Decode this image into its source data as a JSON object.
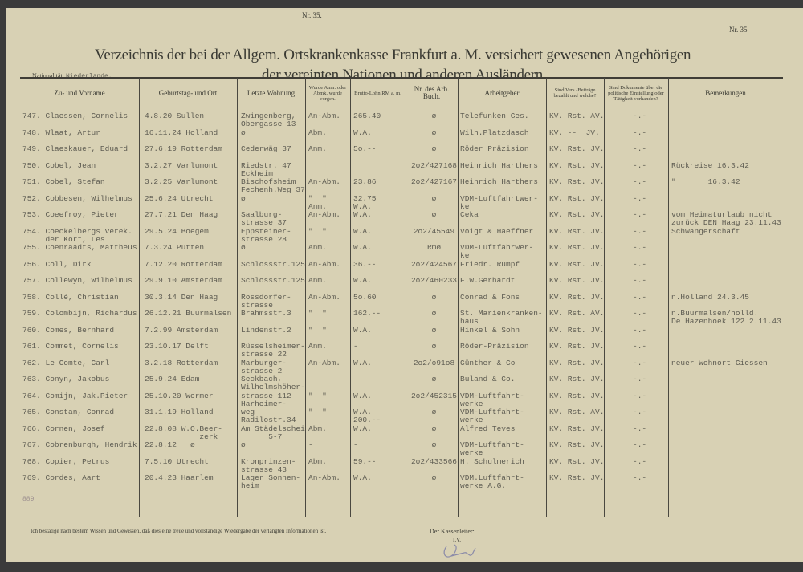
{
  "header": {
    "nr_left": "Nr. 35.",
    "nr_right": "Nr. 35",
    "title_line1": "Verzeichnis der bei der Allgem. Ortskrankenkasse  Frankfurt a. M. versichert gewesenen Angehörigen",
    "title_line2": "der vereinten Nationen  und anderen Ausländern",
    "nationality_label": "Nationalität:",
    "nationality_value": "Niederlande."
  },
  "columns": [
    "Zu- und Vorname",
    "Geburtstag- und Ort",
    "Letzte Wohnung",
    "Wurde Anm. oder Abmk. wurde vorgen.",
    "Brutto-Lohn RM a. m.",
    "Nr. des Arb. Buch.",
    "Arbeitgeber",
    "Sind Vers.-Beiträge bezahlt und welche?",
    "Sind Dokumente über die politische Einstellung oder Tätigkeit vorhanden?",
    "Bemerkungen"
  ],
  "rows": [
    {
      "name": "747. Claessen, Cornelis",
      "birth": "4.8.20 Sullen",
      "address": "Zwingenberg,\nObergasse 13",
      "reg": "An-Abm.",
      "wage": "265.40",
      "book": "ø",
      "employer": "Telefunken Ges.",
      "contrib": "KV. Rst. AV.",
      "docs": "-.-",
      "remarks": ""
    },
    {
      "name": "748. Wlaat, Artur",
      "birth": "16.11.24 Holland",
      "address": "ø",
      "reg": "Abm.",
      "wage": "W.A.",
      "book": "ø",
      "employer": "Wilh.Platzdasch",
      "contrib": "KV. --  JV.",
      "docs": "-.-",
      "remarks": ""
    },
    {
      "name": "749. Claeskauer, Eduard",
      "birth": "27.6.19 Rotterdam",
      "address": "Cederwäg 37",
      "reg": "Anm.",
      "wage": "5o.--",
      "book": "ø",
      "employer": "Röder Präzision",
      "contrib": "KV. Rst. JV.",
      "docs": "-.-",
      "remarks": ""
    },
    {
      "name": "750. Cobel, Jean",
      "birth": "3.2.27 Varlumont",
      "address": "Riedstr. 47\nEckheim",
      "reg": "",
      "wage": "",
      "book": "2o2/427168",
      "employer": "Heinrich Harthers",
      "contrib": "KV. Rst. JV.",
      "docs": "-.-",
      "remarks": "Rückreise 16.3.42"
    },
    {
      "name": "751. Cobel, Stefan",
      "birth": "3.2.25 Varlumont",
      "address": "Bischofsheim\nFechenh.Weg 37",
      "reg": "An-Abm.",
      "wage": "23.86",
      "book": "2o2/427167",
      "employer": "Heinrich Harthers",
      "contrib": "KV. Rst. JV.",
      "docs": "-.-",
      "remarks": "\"       16.3.42"
    },
    {
      "name": "752. Cobbesen, Wilhelmus",
      "birth": "25.6.24 Utrecht",
      "address": "ø",
      "reg": "\"  \"\nAnm.",
      "wage": "32.75\nW.A.",
      "book": "ø",
      "employer": "VDM-Luftfahrtwer-\nke",
      "contrib": "KV. Rst. JV.",
      "docs": "-.-",
      "remarks": ""
    },
    {
      "name": "753. Coeefroy, Pieter",
      "birth": "27.7.21 Den Haag",
      "address": "Saalburg-\nstrasse 37",
      "reg": "An-Abm.",
      "wage": "W.A.",
      "book": "ø",
      "employer": "Ceka",
      "contrib": "KV. Rst. JV.",
      "docs": "-.-",
      "remarks": "vom Heimaturlaub nicht\nzurück DEN Haag 23.11.43"
    },
    {
      "name": "754. Coeckelbergs verek.\n     der Kort, Les",
      "birth": "29.5.24 Boegem",
      "address": "Eppsteiner-\nstrasse 28",
      "reg": "\"  \"",
      "wage": "W.A.",
      "book": "2o2/45549",
      "employer": "Voigt & Haeffner",
      "contrib": "KV. Rst. JV.",
      "docs": "-.-",
      "remarks": "Schwangerschaft"
    },
    {
      "name": "755. Coenraadts, Mattheus",
      "birth": "7.3.24 Putten",
      "address": "ø",
      "reg": "Anm.",
      "wage": "W.A.",
      "book": "Rmø",
      "employer": "VDM-Luftfahrwer-\nke",
      "contrib": "KV. Rst. JV.",
      "docs": "-.-",
      "remarks": ""
    },
    {
      "name": "756. Coll, Dirk",
      "birth": "7.12.20 Rotterdam",
      "address": "Schlossstr.125",
      "reg": "An-Abm.",
      "wage": "36.--",
      "book": "2o2/424567",
      "employer": "Friedr. Rumpf",
      "contrib": "KV. Rst. JV.",
      "docs": "-.-",
      "remarks": ""
    },
    {
      "name": "757. Collewyn, Wilhelmus",
      "birth": "29.9.10 Amsterdam",
      "address": "Schlossstr.125",
      "reg": "Anm.",
      "wage": "W.A.",
      "book": "2o2/460233",
      "employer": "F.W.Gerhardt",
      "contrib": "KV. Rst. JV.",
      "docs": "-.-",
      "remarks": ""
    },
    {
      "name": "758. Collé, Christian",
      "birth": "30.3.14 Den Haag",
      "address": "Rossdorfer-\nstrasse",
      "reg": "An-Abm.",
      "wage": "5o.60",
      "book": "ø",
      "employer": "Conrad & Fons",
      "contrib": "KV. Rst. JV.",
      "docs": "-.-",
      "remarks": "n.Holland 24.3.45"
    },
    {
      "name": "759. Colombijn, Richardus",
      "birth": "26.12.21 Buurmalsen",
      "address": "Brahmsstr.3",
      "reg": "\"  \"",
      "wage": "162.--",
      "book": "ø",
      "employer": "St. Marienkranken-\nhaus",
      "contrib": "KV. Rst. AV.",
      "docs": "-.-",
      "remarks": "n.Buurmalsen/holld.\nDe Hazenhoek 122 2.11.43"
    },
    {
      "name": "760. Comes, Bernhard",
      "birth": "7.2.99 Amsterdam",
      "address": "Lindenstr.2",
      "reg": "\"  \"",
      "wage": "W.A.",
      "book": "ø",
      "employer": "Hinkel & Sohn",
      "contrib": "KV. Rst. JV.",
      "docs": "-.-",
      "remarks": ""
    },
    {
      "name": "761. Commet, Cornelis",
      "birth": "23.10.17 Delft",
      "address": "Rüsselsheimer-\nstrasse 22",
      "reg": "Anm.",
      "wage": "-",
      "book": "ø",
      "employer": "Röder-Präzision",
      "contrib": "KV. Rst. JV.",
      "docs": "-.-",
      "remarks": ""
    },
    {
      "name": "762. Le Comte, Carl",
      "birth": "3.2.18 Rotterdam",
      "address": "Marburger-\nstrasse 2",
      "reg": "An-Abm.",
      "wage": "W.A.",
      "book": "2o2/o91o8",
      "employer": "Günther & Co",
      "contrib": "KV. Rst. JV.",
      "docs": "-.-",
      "remarks": "neuer Wohnort Giessen"
    },
    {
      "name": "763. Conyn, Jakobus",
      "birth": "25.9.24 Edam",
      "address": "Seckbach,\nWilhelmshöher-",
      "reg": "",
      "wage": "",
      "book": "ø",
      "employer": "Buland & Co.",
      "contrib": "KV. Rst. JV.",
      "docs": "-.-",
      "remarks": ""
    },
    {
      "name": "764. Comijn, Jak.Pieter",
      "birth": "25.10.20 Wormer",
      "address": "strasse 112\nHarheimer-",
      "reg": "\"  \"",
      "wage": "W.A.",
      "book": "2o2/452315",
      "employer": "VDM-Luftfahrt-\nwerke",
      "contrib": "KV. Rst. JV.",
      "docs": "-.-",
      "remarks": ""
    },
    {
      "name": "765. Constan, Conrad",
      "birth": "31.1.19 Holland",
      "address": "weg\nRadilostr.34",
      "reg": "\"  \"",
      "wage": "W.A.\n200.--",
      "book": "ø",
      "employer": "VDM-Luftfahrt-\nwerke",
      "contrib": "KV. Rst. AV.",
      "docs": "-.-",
      "remarks": ""
    },
    {
      "name": "766. Cornen, Josef",
      "birth": "22.8.08 W.O.Beer-\n            zerk",
      "address": "Am Städelschei\n      5-7",
      "reg": "Abm.",
      "wage": "W.A.",
      "book": "ø",
      "employer": "Alfred Teves",
      "contrib": "KV. Rst. JV.",
      "docs": "-.-",
      "remarks": ""
    },
    {
      "name": "767. Cobrenburgh, Hendrik",
      "birth": "22.8.12   ø",
      "address": "ø",
      "reg": "-",
      "wage": "-",
      "book": "ø",
      "employer": "VDM-Luftfahrt-\nwerke",
      "contrib": "KV. Rst. JV.",
      "docs": "-.-",
      "remarks": ""
    },
    {
      "name": "768. Copier, Petrus",
      "birth": "7.5.10 Utrecht",
      "address": "Kronprinzen-\nstrasse 43",
      "reg": "Abm.",
      "wage": "59.--",
      "book": "2o2/433566",
      "employer": "H. Schulmerich",
      "contrib": "KV. Rst. JV.",
      "docs": "-.-",
      "remarks": ""
    },
    {
      "name": "769. Cordes, Aart",
      "birth": "20.4.23 Haarlem",
      "address": "Lager Sonnen-\nheim",
      "reg": "An-Abm.",
      "wage": "W.A.",
      "book": "ø",
      "employer": "VDM.Luftfahrt-\nwerke A.G.",
      "contrib": "KV. Rst. JV.",
      "docs": "-.-",
      "remarks": ""
    }
  ],
  "tally": "889",
  "footer": {
    "statement": "Ich bestätige nach bestem Wissen und Gewissen, daß dies eine treue und vollständige Wiedergabe der verlangten Informationen ist.",
    "signatory_label": "Der Kassenleiter:",
    "iv": "I.V."
  }
}
